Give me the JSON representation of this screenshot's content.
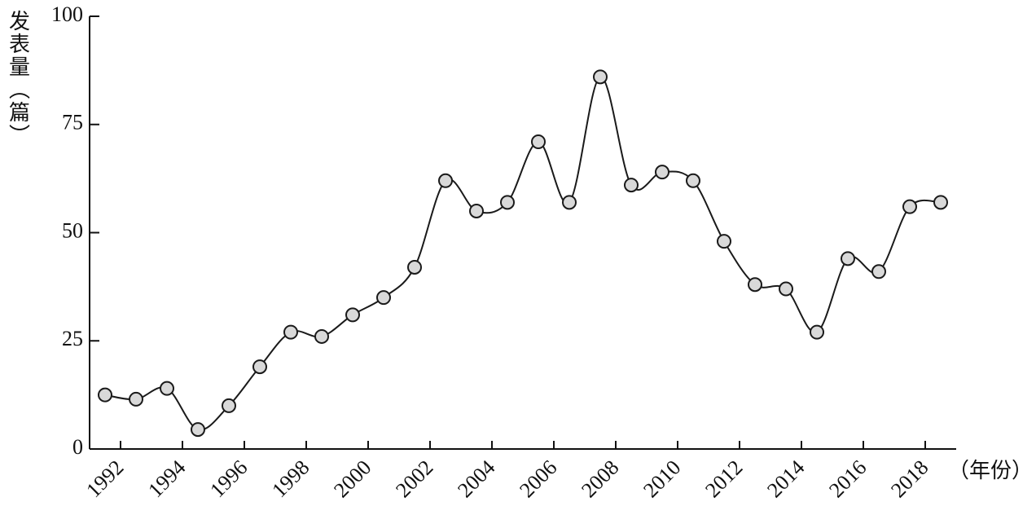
{
  "chart_data": {
    "type": "line",
    "y_label": "发表量（篇）",
    "x_label": "（年份）",
    "categories": [
      "1992",
      null,
      "1994",
      null,
      "1996",
      null,
      "1998",
      null,
      "2000",
      null,
      "2002",
      null,
      "2004",
      null,
      "2006",
      null,
      "2008",
      null,
      "2010",
      null,
      "2012",
      null,
      "2014",
      null,
      "2016",
      null,
      "2018",
      null
    ],
    "series": [
      {
        "name": "发表量",
        "color": "#1a1a1a",
        "marker_color": "#d9d9d9",
        "values": [
          12.5,
          11.5,
          14,
          4.5,
          10,
          19,
          27,
          26,
          31,
          35,
          42,
          62,
          55,
          57,
          71,
          57,
          86,
          61,
          64,
          62,
          48,
          38,
          37,
          27,
          44,
          41,
          56,
          57
        ]
      }
    ],
    "ylim": [
      0,
      100
    ],
    "yticks": [
      0,
      25,
      50,
      75,
      100
    ],
    "grid": false,
    "smooth": true
  }
}
